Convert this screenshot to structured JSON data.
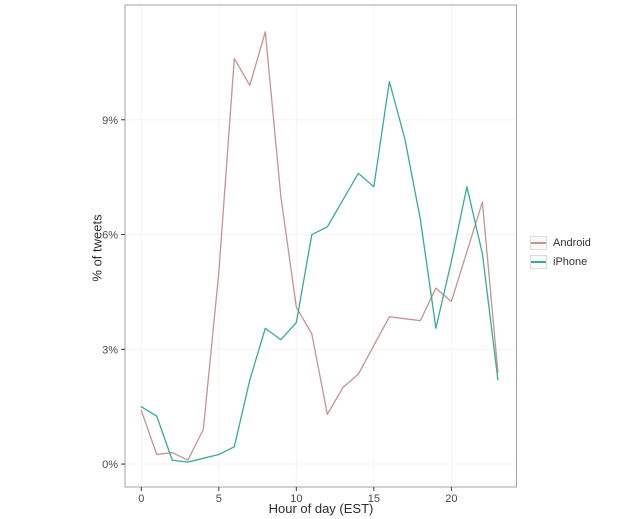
{
  "chart_data": {
    "type": "line",
    "title": "",
    "xlabel": "Hour of day (EST)",
    "ylabel": "% of tweets",
    "x": [
      0,
      1,
      2,
      3,
      4,
      5,
      6,
      7,
      8,
      9,
      10,
      11,
      12,
      13,
      14,
      15,
      16,
      17,
      18,
      19,
      20,
      21,
      22,
      23
    ],
    "series": [
      {
        "name": "Android",
        "color": "#c6938f",
        "values": [
          1.4,
          0.25,
          0.3,
          0.1,
          0.9,
          5.0,
          10.6,
          9.9,
          11.3,
          7.0,
          4.1,
          3.4,
          1.3,
          2.0,
          2.35,
          3.1,
          3.85,
          3.8,
          3.75,
          4.6,
          4.25,
          5.55,
          6.85,
          2.4
        ]
      },
      {
        "name": "iPhone",
        "color": "#35ac9e",
        "values": [
          1.5,
          1.25,
          0.1,
          0.05,
          0.15,
          0.25,
          0.45,
          2.2,
          3.55,
          3.25,
          3.7,
          6.0,
          6.2,
          6.9,
          7.6,
          7.25,
          10.0,
          8.5,
          6.4,
          3.55,
          5.3,
          7.25,
          5.5,
          2.2
        ]
      }
    ],
    "x_ticks": [
      0,
      5,
      10,
      15,
      20
    ],
    "x_tick_labels": [
      "0",
      "5",
      "10",
      "15",
      "20"
    ],
    "y_ticks": [
      0,
      3,
      6,
      9
    ],
    "y_tick_labels": [
      "0%",
      "3%",
      "6%",
      "9%"
    ],
    "xlim": [
      -1.05,
      24.2
    ],
    "ylim": [
      -0.6,
      12.0
    ],
    "grid": true,
    "legend_position": "right-center"
  },
  "style": {
    "android_color": "#c6938f",
    "iphone_color": "#35ac9e",
    "panel_border": "#a3a3a3",
    "grid_color": "#f6f3f2",
    "tick_color": "#3a3a3a",
    "tick_label_color": "#4a4a4a",
    "legend_key_fill": "#fbfaf9",
    "legend_key_border": "#dcdcdc"
  }
}
